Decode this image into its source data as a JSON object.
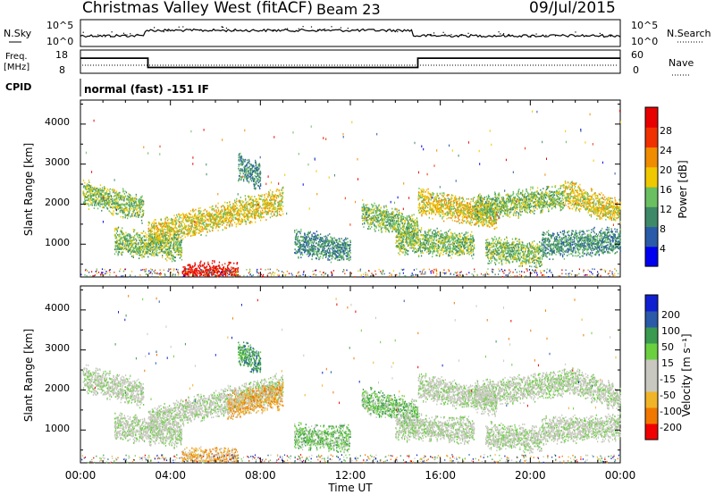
{
  "header": {
    "station": "Christmas Valley West (fitACF)",
    "beam": "Beam 23",
    "date": "09/Jul/2015"
  },
  "noise_panel": {
    "left_label": "N.Sky",
    "right_label": "N.Search",
    "tick_top": "10^5",
    "tick_bottom": "10^0"
  },
  "freq_panel": {
    "left_label_line1": "Freq.",
    "left_label_line2": "[MHz]",
    "left_tick_top": "18",
    "left_tick_bottom": "8",
    "right_label": "Nave",
    "right_tick_top": "60",
    "right_tick_bottom": "0",
    "freq_steps_hours": [
      0,
      3,
      15,
      24
    ],
    "freq_levels_mhz": [
      14.5,
      10.5,
      14.5
    ]
  },
  "cpid": {
    "label": "CPID",
    "program": "normal (fast) -151 IF"
  },
  "x_axis": {
    "title": "Time UT",
    "ticks": [
      "00:00",
      "04:00",
      "08:00",
      "12:00",
      "16:00",
      "20:00",
      "00:00"
    ]
  },
  "chart_data": [
    {
      "type": "heatmap",
      "name": "power",
      "ylabel": "Slant Range [km]",
      "yticks": [
        "4000",
        "3000",
        "2000",
        "1000"
      ],
      "ylim": [
        180,
        4600
      ],
      "xlim_hours": [
        0,
        24
      ],
      "colorbar": {
        "label": "Power [dB]",
        "ticks": [
          "28",
          "24",
          "20",
          "16",
          "12",
          "8",
          "4"
        ],
        "colors": [
          "#0000f0",
          "#2a5ba8",
          "#3e8a68",
          "#6ac060",
          "#f0c800",
          "#f08c00",
          "#f03000",
          "#e80000"
        ]
      },
      "echo_bands": [
        {
          "t0": 0.1,
          "t1": 2.8,
          "r0": 2300,
          "r1": 1900,
          "level": 3
        },
        {
          "t0": 3.0,
          "t1": 9.0,
          "r0": 1250,
          "r1": 2100,
          "level": 4
        },
        {
          "t0": 1.5,
          "t1": 4.5,
          "r0": 1100,
          "r1": 900,
          "level": 3
        },
        {
          "t0": 9.5,
          "t1": 12.0,
          "r0": 1050,
          "r1": 850,
          "level": 2
        },
        {
          "t0": 12.5,
          "t1": 15.0,
          "r0": 1800,
          "r1": 1400,
          "level": 3
        },
        {
          "t0": 15.0,
          "t1": 18.5,
          "r0": 2100,
          "r1": 1700,
          "level": 4
        },
        {
          "t0": 17.5,
          "t1": 21.5,
          "r0": 1900,
          "r1": 2200,
          "level": 3
        },
        {
          "t0": 21.5,
          "t1": 24.0,
          "r0": 2300,
          "r1": 1800,
          "level": 4
        },
        {
          "t0": 14.0,
          "t1": 17.5,
          "r0": 1100,
          "r1": 1000,
          "level": 3
        },
        {
          "t0": 18.0,
          "t1": 20.5,
          "r0": 900,
          "r1": 750,
          "level": 3
        },
        {
          "t0": 20.5,
          "t1": 24.0,
          "r0": 1000,
          "r1": 1100,
          "level": 2
        },
        {
          "t0": 7.0,
          "t1": 8.0,
          "r0": 2950,
          "r1": 2700,
          "level": 2
        },
        {
          "t0": 4.5,
          "t1": 7.0,
          "r0": 250,
          "r1": 250,
          "level": 7
        }
      ]
    },
    {
      "type": "heatmap",
      "name": "velocity",
      "ylabel": "Slant Range [km]",
      "yticks": [
        "4000",
        "3000",
        "2000",
        "1000"
      ],
      "ylim": [
        180,
        4600
      ],
      "xlim_hours": [
        0,
        24
      ],
      "colorbar": {
        "label": "Velocity [m s⁻¹]",
        "ticks": [
          "200",
          "100",
          "50",
          "15",
          "-15",
          "-50",
          "-100",
          "-200"
        ],
        "colors": [
          "#f00000",
          "#f07800",
          "#f0b428",
          "#c8c8c0",
          "#c8c8c0",
          "#6ad040",
          "#3a9a50",
          "#2a5aa8",
          "#1020d0"
        ]
      },
      "echo_bands": [
        {
          "t0": 0.1,
          "t1": 2.8,
          "r0": 2300,
          "r1": 1900,
          "level": 4
        },
        {
          "t0": 3.0,
          "t1": 9.0,
          "r0": 1250,
          "r1": 2100,
          "level": 4
        },
        {
          "t0": 1.5,
          "t1": 4.5,
          "r0": 1100,
          "r1": 900,
          "level": 4
        },
        {
          "t0": 9.5,
          "t1": 12.0,
          "r0": 850,
          "r1": 800,
          "level": 5
        },
        {
          "t0": 12.5,
          "t1": 15.0,
          "r0": 1800,
          "r1": 1400,
          "level": 5
        },
        {
          "t0": 15.0,
          "t1": 18.5,
          "r0": 2100,
          "r1": 1700,
          "level": 4
        },
        {
          "t0": 17.5,
          "t1": 21.5,
          "r0": 1900,
          "r1": 2200,
          "level": 4
        },
        {
          "t0": 21.5,
          "t1": 24.0,
          "r0": 2300,
          "r1": 1800,
          "level": 4
        },
        {
          "t0": 14.0,
          "t1": 17.5,
          "r0": 1100,
          "r1": 1000,
          "level": 4
        },
        {
          "t0": 18.0,
          "t1": 20.5,
          "r0": 900,
          "r1": 750,
          "level": 4
        },
        {
          "t0": 20.5,
          "t1": 24.0,
          "r0": 1000,
          "r1": 1100,
          "level": 4
        },
        {
          "t0": 7.0,
          "t1": 8.0,
          "r0": 2950,
          "r1": 2700,
          "level": 6
        },
        {
          "t0": 4.5,
          "t1": 7.0,
          "r0": 250,
          "r1": 250,
          "level": 2
        },
        {
          "t0": 6.5,
          "t1": 9.0,
          "r0": 1600,
          "r1": 1900,
          "level": 2
        }
      ]
    }
  ]
}
